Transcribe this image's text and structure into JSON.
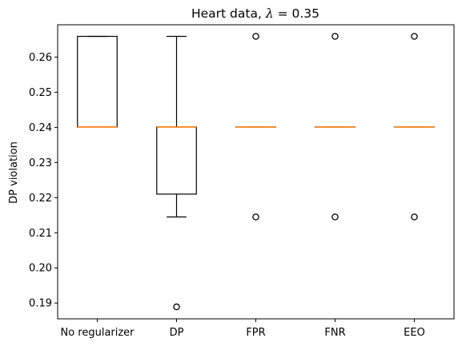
{
  "chart_data": {
    "type": "box",
    "title_prefix": "Heart data, ",
    "title_symbol": "λ",
    "title_suffix": " =  0.35",
    "xlabel": "",
    "ylabel": "DP violation",
    "ylim": [
      0.1855,
      0.2692
    ],
    "yticks": [
      0.19,
      0.2,
      0.21,
      0.22,
      0.23,
      0.24,
      0.25,
      0.26
    ],
    "ytick_labels": [
      "0.19",
      "0.20",
      "0.21",
      "0.22",
      "0.23",
      "0.24",
      "0.25",
      "0.26"
    ],
    "categories": [
      "No regularizer",
      "DP",
      "FPR",
      "FNR",
      "EEO"
    ],
    "boxes": [
      {
        "category": "No regularizer",
        "whisker_low": 0.2401,
        "q1": 0.2401,
        "median": 0.2401,
        "q3": 0.2659,
        "whisker_high": 0.2659,
        "fliers": []
      },
      {
        "category": "DP",
        "whisker_low": 0.2145,
        "q1": 0.221,
        "median": 0.2401,
        "q3": 0.2401,
        "whisker_high": 0.2659,
        "fliers": [
          0.1889
        ]
      },
      {
        "category": "FPR",
        "whisker_low": 0.2401,
        "q1": 0.2401,
        "median": 0.2401,
        "q3": 0.2401,
        "whisker_high": 0.2401,
        "fliers": [
          0.2145,
          0.2659
        ]
      },
      {
        "category": "FNR",
        "whisker_low": 0.2401,
        "q1": 0.2401,
        "median": 0.2401,
        "q3": 0.2401,
        "whisker_high": 0.2401,
        "fliers": [
          0.2145,
          0.2659
        ]
      },
      {
        "category": "EEO",
        "whisker_low": 0.2401,
        "q1": 0.2401,
        "median": 0.2401,
        "q3": 0.2401,
        "whisker_high": 0.2401,
        "fliers": [
          0.2145,
          0.2659
        ]
      }
    ],
    "colors": {
      "box": "#000000",
      "median": "#ff7f0e",
      "flier": "#000000"
    },
    "grid": false
  }
}
